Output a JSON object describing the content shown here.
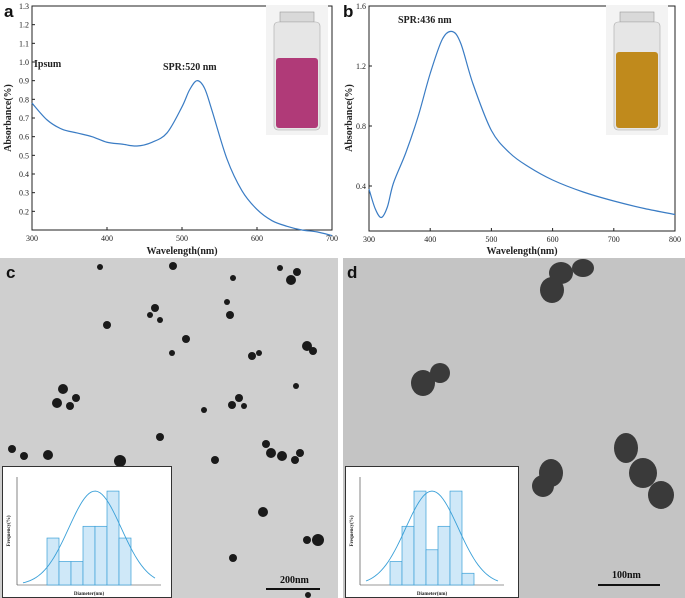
{
  "panels": {
    "a": {
      "letter": "a",
      "legend_label": "Ipsum",
      "spr_label": "SPR:520 nm",
      "xlabel": "Wavelength(nm)",
      "ylabel": "Absorbance(%)",
      "xticks": [
        "300",
        "400",
        "500",
        "600",
        "700"
      ],
      "yticks": [
        "0.2",
        "0.3",
        "0.4",
        "0.5",
        "0.6",
        "0.7",
        "0.8",
        "0.9",
        "1.0",
        "1.1",
        "1.2",
        "1.3"
      ],
      "vial_color": "#b03a78"
    },
    "b": {
      "letter": "b",
      "spr_label": "SPR:436 nm",
      "xlabel": "Wavelength(nm)",
      "ylabel": "Absorbance(%)",
      "xticks": [
        "300",
        "400",
        "500",
        "600",
        "700",
        "800"
      ],
      "yticks": [
        "0.4",
        "0.8",
        "1.2",
        "1.6"
      ],
      "vial_color": "#c08a1c"
    },
    "c": {
      "letter": "c",
      "scalebar": "200nm",
      "inset_xlabel": "Diameter(nm)",
      "inset_ylabel": "Frequency(%)"
    },
    "d": {
      "letter": "d",
      "scalebar": "100nm",
      "inset_xlabel": "Diameter(nm)",
      "inset_ylabel": "Frequency(%)"
    }
  },
  "chart_data": [
    {
      "type": "line",
      "panel": "a",
      "xlabel": "Wavelength(nm)",
      "ylabel": "Absorbance(%)",
      "xlim": [
        300,
        700
      ],
      "ylim": [
        0.1,
        1.3
      ],
      "annotation": "SPR:520 nm",
      "color": "#3a7cc4",
      "x": [
        300,
        320,
        340,
        360,
        380,
        400,
        420,
        440,
        460,
        480,
        500,
        510,
        520,
        530,
        540,
        560,
        580,
        600,
        620,
        640,
        660,
        680,
        700
      ],
      "y": [
        0.78,
        0.69,
        0.64,
        0.62,
        0.6,
        0.57,
        0.56,
        0.55,
        0.57,
        0.62,
        0.76,
        0.85,
        0.9,
        0.86,
        0.74,
        0.48,
        0.31,
        0.21,
        0.15,
        0.12,
        0.1,
        0.09,
        0.07
      ]
    },
    {
      "type": "line",
      "panel": "b",
      "xlabel": "Wavelength(nm)",
      "ylabel": "Absorbance(%)",
      "xlim": [
        300,
        800
      ],
      "ylim": [
        0.1,
        1.6
      ],
      "annotation": "SPR:436 nm",
      "color": "#3a7cc4",
      "x": [
        300,
        310,
        320,
        330,
        340,
        360,
        380,
        400,
        420,
        436,
        450,
        470,
        500,
        530,
        560,
        600,
        650,
        700,
        750,
        800
      ],
      "y": [
        0.38,
        0.25,
        0.19,
        0.26,
        0.42,
        0.62,
        0.86,
        1.15,
        1.38,
        1.43,
        1.35,
        1.08,
        0.77,
        0.62,
        0.53,
        0.44,
        0.36,
        0.3,
        0.25,
        0.21
      ]
    },
    {
      "type": "bar",
      "panel": "c-inset",
      "xlabel": "Diameter(nm)",
      "ylabel": "Frequency(%)",
      "values": [
        4,
        2,
        2,
        5,
        5,
        8,
        4
      ],
      "fit": "gaussian"
    },
    {
      "type": "bar",
      "panel": "d-inset",
      "xlabel": "Diameter(nm)",
      "ylabel": "Frequency(%)",
      "values": [
        2,
        5,
        8,
        3,
        5,
        8,
        1
      ],
      "fit": "gaussian"
    }
  ]
}
